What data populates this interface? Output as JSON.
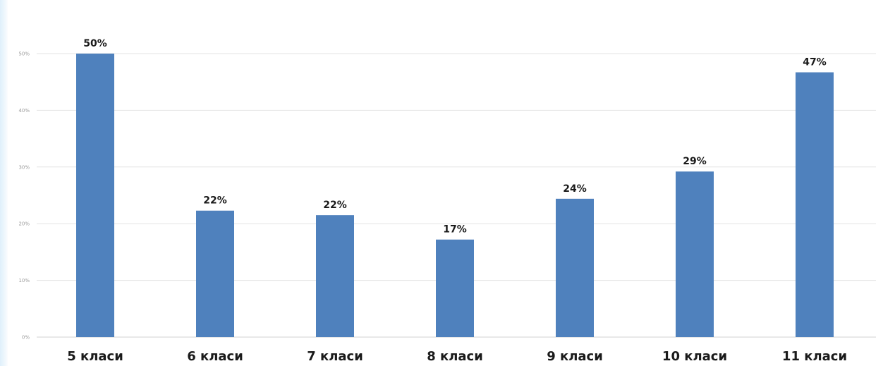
{
  "chart_data": {
    "type": "bar",
    "categories": [
      "5 класи",
      "6 класи",
      "7 класи",
      "8 класи",
      "9 класи",
      "10 класи",
      "11 класи"
    ],
    "values": [
      50,
      22.3,
      21.5,
      17.2,
      24.4,
      29.2,
      46.7
    ],
    "data_labels": [
      "50%",
      "22%",
      "22%",
      "17%",
      "24%",
      "29%",
      "47%"
    ],
    "y_ticks": [
      0,
      10,
      20,
      30,
      40,
      50
    ],
    "y_tick_labels": [
      "0%",
      "10%",
      "20%",
      "30%",
      "40%",
      "50%"
    ],
    "ylim": [
      0,
      50
    ],
    "grid": true,
    "legend": "none",
    "bar_color": "#4f81bd"
  }
}
